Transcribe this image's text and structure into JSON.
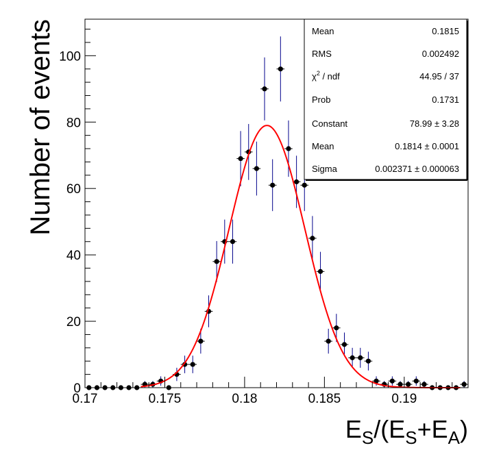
{
  "chart_data": {
    "type": "scatter",
    "title": "",
    "xlabel": "E_S/(E_S+E_A)",
    "xlabel_parts": {
      "base1": "E",
      "sub1": "S",
      "mid": "/(E",
      "sub2": "S",
      "plus": "+E",
      "sub3": "A",
      "close": ")"
    },
    "ylabel": "Number of events",
    "xlim": [
      0.17,
      0.194
    ],
    "ylim": [
      0,
      111
    ],
    "grid": false,
    "x_ticks": [
      {
        "value": 0.17,
        "label": "0.17"
      },
      {
        "value": 0.175,
        "label": "0.175"
      },
      {
        "value": 0.18,
        "label": "0.18"
      },
      {
        "value": 0.185,
        "label": "0.185"
      },
      {
        "value": 0.19,
        "label": "0.19"
      }
    ],
    "y_ticks": [
      {
        "value": 0,
        "label": "0"
      },
      {
        "value": 20,
        "label": "20"
      },
      {
        "value": 40,
        "label": "40"
      },
      {
        "value": 60,
        "label": "60"
      },
      {
        "value": 80,
        "label": "80"
      },
      {
        "value": 100,
        "label": "100"
      }
    ],
    "bin_width": 0.0005,
    "series": [
      {
        "name": "histogram",
        "x": [
          0.17025,
          0.17075,
          0.17125,
          0.17175,
          0.17225,
          0.17275,
          0.17325,
          0.17375,
          0.17425,
          0.17475,
          0.17525,
          0.17575,
          0.17625,
          0.17675,
          0.17725,
          0.17775,
          0.17825,
          0.17875,
          0.17925,
          0.17975,
          0.18025,
          0.18075,
          0.18125,
          0.18175,
          0.18225,
          0.18275,
          0.18325,
          0.18375,
          0.18425,
          0.18475,
          0.18525,
          0.18575,
          0.18625,
          0.18675,
          0.18725,
          0.18775,
          0.18825,
          0.18875,
          0.18925,
          0.18975,
          0.19025,
          0.19075,
          0.19125,
          0.19175,
          0.19225,
          0.19275,
          0.19325,
          0.19375
        ],
        "y": [
          0,
          0,
          0,
          0,
          0,
          0,
          0,
          1,
          1,
          2,
          0,
          4,
          7,
          7,
          14,
          23,
          38,
          44,
          44,
          69,
          71,
          66,
          90,
          61,
          96,
          72,
          62,
          61,
          45,
          35,
          14,
          18,
          13,
          9,
          9,
          8,
          2,
          1,
          2,
          1,
          1,
          2,
          1,
          0,
          0,
          0,
          0,
          1
        ]
      },
      {
        "name": "gaussian fit",
        "function": "gaus",
        "constant": 78.99,
        "mean": 0.1814,
        "sigma": 0.002371,
        "color": "#ff0000"
      }
    ],
    "colors": {
      "marker": "#000000",
      "error_bar": "#00008b",
      "fit": "#ff0000"
    },
    "legend_position": "top-right"
  },
  "stats_box": {
    "rows": [
      {
        "label": "Mean",
        "value": "0.1815"
      },
      {
        "label": "RMS",
        "value": "0.002492"
      },
      {
        "label_main": "χ",
        "label_sup": "2",
        "label_rest": " / ndf",
        "value": "44.95 / 37"
      },
      {
        "label": "Prob",
        "value": "0.1731"
      },
      {
        "label": "Constant",
        "value": "78.99 ± 3.28"
      },
      {
        "label": "Mean",
        "value": "0.1814 ± 0.0001"
      },
      {
        "label": "Sigma",
        "value": "0.002371 ± 0.000063"
      }
    ]
  }
}
